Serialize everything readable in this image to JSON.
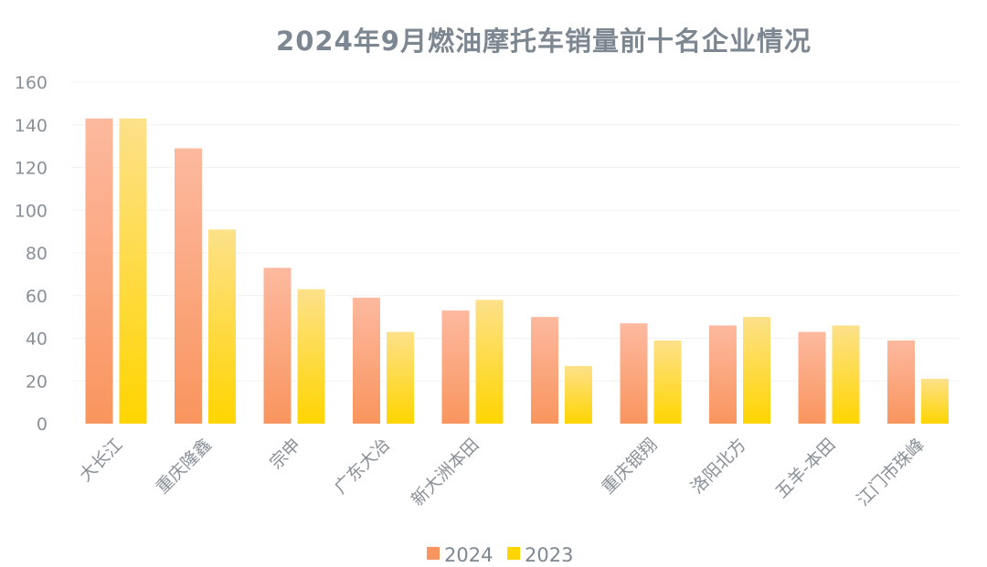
{
  "chart_data": {
    "type": "bar",
    "title": "2024年9月燃油摩托车销量前十名企业情况",
    "categories": [
      "大长江",
      "重庆隆鑫",
      "宗申",
      "广东大冶",
      "新大洲本田",
      "",
      "重庆银翔",
      "洛阳北方",
      "五羊-本田",
      "江门市珠峰"
    ],
    "series": [
      {
        "name": "2024",
        "values": [
          143,
          129,
          73,
          59,
          53,
          50,
          47,
          46,
          43,
          39
        ]
      },
      {
        "name": "2023",
        "values": [
          143,
          91,
          63,
          43,
          58,
          27,
          39,
          50,
          46,
          21
        ]
      }
    ],
    "ylim": [
      0,
      160
    ],
    "yticks": [
      0,
      20,
      40,
      60,
      80,
      100,
      120,
      140,
      160
    ],
    "xlabel": "",
    "ylabel": "",
    "grid": true,
    "legend_position": "bottom",
    "colors": {
      "2024_top": "#fdb99f",
      "2024_bottom": "#f9955e",
      "2023_top": "#fde18a",
      "2023_bottom": "#ffd500",
      "axis_text": "#8a9097",
      "title": "#7d8791"
    }
  }
}
